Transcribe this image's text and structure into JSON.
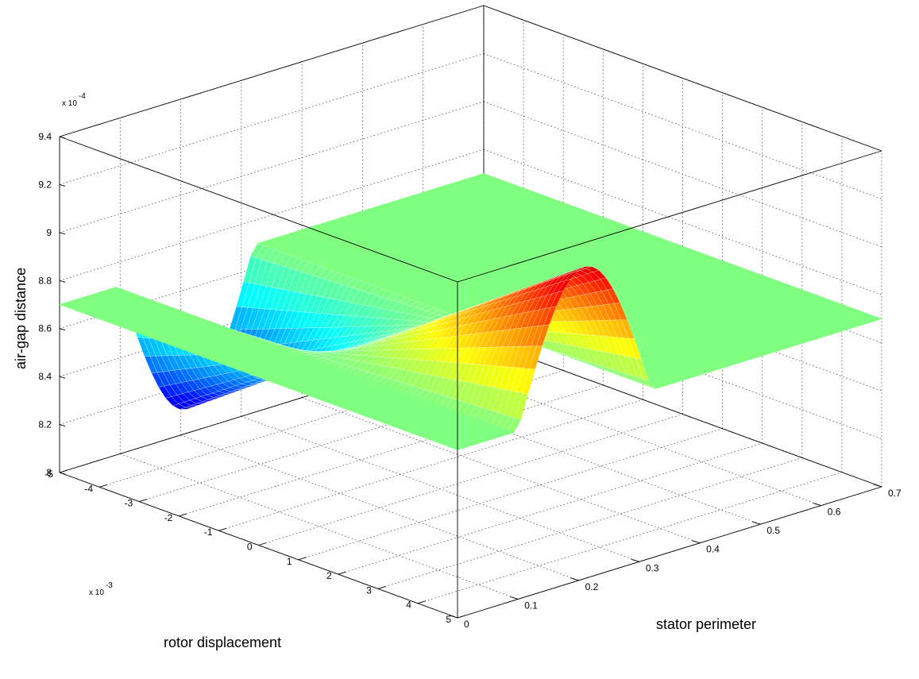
{
  "chart_data": {
    "type": "surface3d",
    "title": "",
    "xlabel": "stator perimeter",
    "ylabel": "rotor displacement",
    "zlabel": "air-gap distance",
    "xlim": [
      0,
      0.7
    ],
    "ylim": [
      -0.005,
      0.005
    ],
    "zlim": [
      0.0008,
      0.00094
    ],
    "x_ticks": [
      "0",
      "0.1",
      "0.2",
      "0.3",
      "0.4",
      "0.5",
      "0.6",
      "0.7"
    ],
    "y_ticks": [
      "-5",
      "-4",
      "-3",
      "-2",
      "-1",
      "0",
      "1",
      "2",
      "3",
      "4",
      "5"
    ],
    "z_ticks": [
      "8",
      "8.2",
      "8.4",
      "8.6",
      "8.8",
      "9",
      "9.2",
      "9.4"
    ],
    "y_multiplier": "x 10",
    "y_multiplier_exp": "-3",
    "z_multiplier": "x 10",
    "z_multiplier_exp": "-4",
    "grid": true,
    "colormap": "jet",
    "surface": {
      "baseline": 0.00087,
      "amplitude": 6e-05,
      "x_extent": [
        0.1,
        0.32
      ],
      "peak_x": 0.2,
      "peak_value": 0.00093,
      "trough_value": 0.00081
    },
    "plane_level": 0.00087
  }
}
